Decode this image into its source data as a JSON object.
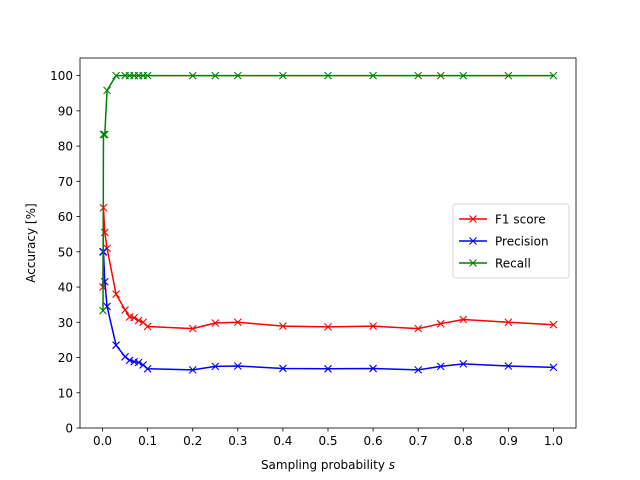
{
  "chart_data": {
    "type": "line",
    "xlabel": "Sampling probability",
    "xlabel_var": "s",
    "ylabel": "Accuracy [%]",
    "xlim": [
      -0.05,
      1.05
    ],
    "ylim": [
      0,
      105
    ],
    "xticks": [
      "0.0",
      "0.1",
      "0.2",
      "0.3",
      "0.4",
      "0.5",
      "0.6",
      "0.7",
      "0.8",
      "0.9",
      "1.0"
    ],
    "yticks": [
      "0",
      "10",
      "20",
      "30",
      "40",
      "50",
      "60",
      "70",
      "80",
      "90",
      "100"
    ],
    "grid": false,
    "legend_position": "center-right",
    "x": [
      0.001,
      0.002,
      0.005,
      0.01,
      0.03,
      0.05,
      0.06,
      0.07,
      0.08,
      0.09,
      0.1,
      0.2,
      0.25,
      0.3,
      0.4,
      0.5,
      0.6,
      0.7,
      0.75,
      0.8,
      0.9,
      1.0
    ],
    "series": [
      {
        "name": "F1 score",
        "color": "#ff0000",
        "values": [
          40.0,
          62.5,
          55.5,
          51.0,
          38.0,
          33.5,
          31.5,
          31.3,
          30.5,
          30.0,
          28.8,
          28.2,
          29.8,
          30.0,
          28.9,
          28.7,
          28.9,
          28.2,
          29.6,
          30.8,
          30.0,
          29.3
        ]
      },
      {
        "name": "Precision",
        "color": "#0000ff",
        "values": [
          50.0,
          50.0,
          41.5,
          34.5,
          23.5,
          20.2,
          19.2,
          18.8,
          18.6,
          17.9,
          16.8,
          16.5,
          17.5,
          17.6,
          16.9,
          16.8,
          16.9,
          16.5,
          17.5,
          18.2,
          17.6,
          17.2
        ]
      },
      {
        "name": "Recall",
        "color": "#008000",
        "values": [
          33.3,
          83.3,
          83.3,
          95.8,
          100,
          100,
          100,
          100,
          100,
          100,
          100,
          100,
          100,
          100,
          100,
          100,
          100,
          100,
          100,
          100,
          100,
          100
        ]
      }
    ]
  }
}
